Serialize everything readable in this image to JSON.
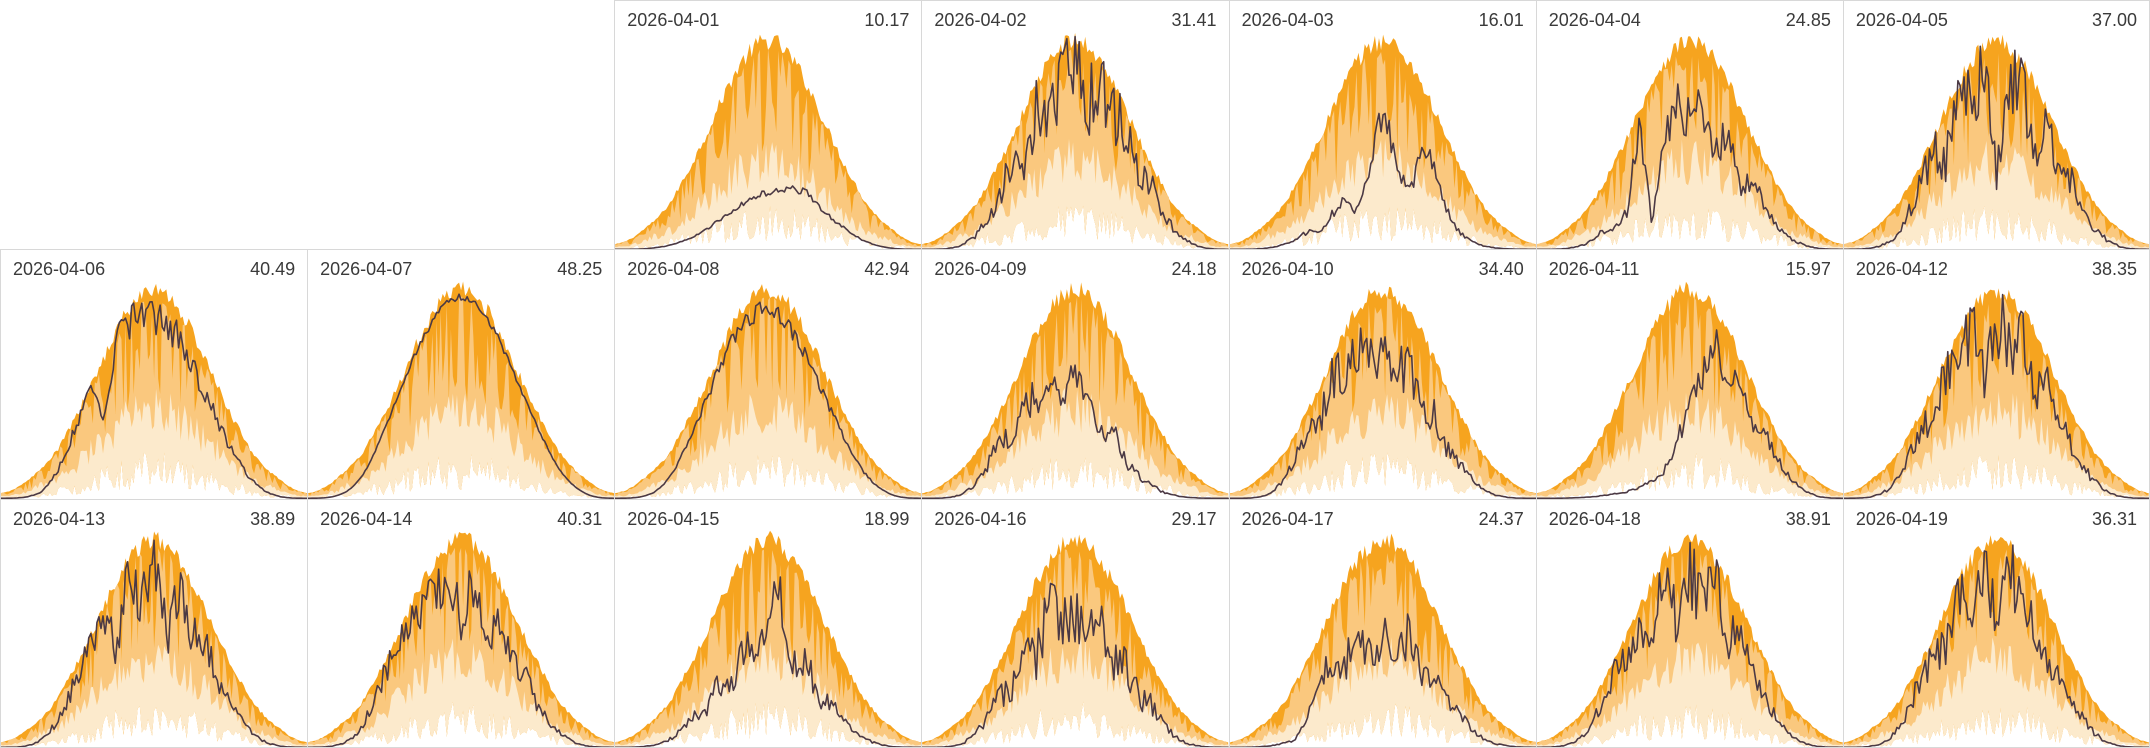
{
  "colors": {
    "envelope_bright": "#F6A41F",
    "envelope_mid": "#FAC87E",
    "envelope_pale": "#FCEACC",
    "actual_line": "#4B3944",
    "cell_border": "#D8D8D8",
    "label_text": "#3A3A3A",
    "background": "#FFFFFF"
  },
  "chart_data": {
    "type": "area",
    "layout": {
      "rows": 3,
      "cols": 7,
      "leading_empty_cells": 2
    },
    "axes_labels_visible": false,
    "envelope_fractions": {
      "note": "shared expected-production envelope, fraction of cell height across the day",
      "max": [
        0.02,
        0.03,
        0.05,
        0.08,
        0.11,
        0.15,
        0.2,
        0.27,
        0.34,
        0.42,
        0.5,
        0.59,
        0.67,
        0.74,
        0.79,
        0.83,
        0.84,
        0.83,
        0.79,
        0.74,
        0.67,
        0.59,
        0.5,
        0.42,
        0.34,
        0.27,
        0.2,
        0.15,
        0.11,
        0.08,
        0.05,
        0.03,
        0.02
      ],
      "p75": [
        0.02,
        0.03,
        0.04,
        0.07,
        0.1,
        0.13,
        0.18,
        0.24,
        0.3,
        0.37,
        0.44,
        0.52,
        0.59,
        0.65,
        0.7,
        0.73,
        0.74,
        0.73,
        0.7,
        0.65,
        0.59,
        0.52,
        0.44,
        0.37,
        0.3,
        0.24,
        0.18,
        0.13,
        0.1,
        0.07,
        0.04,
        0.03,
        0.02
      ],
      "p25": [
        0.01,
        0.01,
        0.02,
        0.03,
        0.05,
        0.06,
        0.08,
        0.11,
        0.14,
        0.18,
        0.21,
        0.25,
        0.28,
        0.31,
        0.33,
        0.35,
        0.35,
        0.35,
        0.33,
        0.31,
        0.28,
        0.25,
        0.21,
        0.18,
        0.14,
        0.11,
        0.08,
        0.06,
        0.05,
        0.03,
        0.02,
        0.01,
        0.01
      ],
      "min": [
        0.0,
        0.0,
        0.01,
        0.01,
        0.01,
        0.02,
        0.03,
        0.04,
        0.04,
        0.05,
        0.07,
        0.08,
        0.09,
        0.1,
        0.1,
        0.11,
        0.11,
        0.11,
        0.1,
        0.1,
        0.09,
        0.08,
        0.07,
        0.05,
        0.04,
        0.04,
        0.03,
        0.02,
        0.01,
        0.01,
        0.01,
        0.0,
        0.0
      ]
    },
    "days": [
      {
        "date": "2026-04-01",
        "value": 10.17,
        "value_label": "10.17",
        "variability": 0.06,
        "profile": [
          0,
          0,
          0.02,
          0.05,
          0.08,
          0.11,
          0.14,
          0.17,
          0.2,
          0.22,
          0.24,
          0.26,
          0.27,
          0.29,
          0.32,
          0.34,
          0.31,
          0.28,
          0.25,
          0.2,
          0.15,
          0.09,
          0.04,
          0.01,
          0
        ]
      },
      {
        "date": "2026-04-02",
        "value": 31.41,
        "value_label": "31.41",
        "variability": 0.24,
        "profile": [
          0,
          0,
          0.04,
          0.12,
          0.28,
          0.45,
          0.6,
          0.8,
          0.55,
          0.92,
          0.65,
          0.88,
          0.95,
          0.72,
          0.93,
          0.8,
          0.88,
          0.68,
          0.75,
          0.55,
          0.4,
          0.25,
          0.1,
          0.03,
          0
        ]
      },
      {
        "date": "2026-04-03",
        "value": 16.01,
        "value_label": "16.01",
        "variability": 0.15,
        "profile": [
          0,
          0,
          0.02,
          0.05,
          0.1,
          0.15,
          0.2,
          0.15,
          0.25,
          0.3,
          0.2,
          0.45,
          0.7,
          0.4,
          0.3,
          0.55,
          0.6,
          0.35,
          0.2,
          0.12,
          0.08,
          0.04,
          0.02,
          0.01,
          0
        ]
      },
      {
        "date": "2026-04-04",
        "value": 24.85,
        "value_label": "24.85",
        "variability": 0.18,
        "profile": [
          0,
          0,
          0.03,
          0.08,
          0.15,
          0.28,
          0.22,
          0.32,
          0.95,
          0.15,
          0.55,
          0.75,
          0.6,
          0.7,
          0.55,
          0.65,
          0.45,
          0.6,
          0.5,
          0.35,
          0.25,
          0.15,
          0.06,
          0.02,
          0
        ]
      },
      {
        "date": "2026-04-05",
        "value": 37.0,
        "value_label": "37.00",
        "variability": 0.24,
        "profile": [
          0,
          0.02,
          0.06,
          0.15,
          0.3,
          0.55,
          0.75,
          0.88,
          0.62,
          0.93,
          0.8,
          0.88,
          0.35,
          0.85,
          0.93,
          0.55,
          0.88,
          0.75,
          0.82,
          0.6,
          0.42,
          0.25,
          0.1,
          0.03,
          0
        ]
      },
      {
        "date": "2026-04-06",
        "value": 40.49,
        "value_label": "40.49",
        "variability": 0.1,
        "profile": [
          0,
          0.02,
          0.08,
          0.2,
          0.45,
          0.72,
          0.92,
          0.95,
          0.55,
          0.95,
          0.93,
          0.9,
          0.88,
          0.84,
          0.86,
          0.8,
          0.76,
          0.7,
          0.6,
          0.48,
          0.34,
          0.2,
          0.08,
          0.02,
          0
        ]
      },
      {
        "date": "2026-04-07",
        "value": 48.25,
        "value_label": "48.25",
        "variability": 0.02,
        "profile": [
          0,
          0.03,
          0.1,
          0.24,
          0.45,
          0.66,
          0.82,
          0.91,
          0.95,
          0.96,
          0.97,
          0.97,
          0.97,
          0.97,
          0.96,
          0.95,
          0.93,
          0.9,
          0.84,
          0.74,
          0.58,
          0.4,
          0.2,
          0.06,
          0
        ]
      },
      {
        "date": "2026-04-08",
        "value": 42.94,
        "value_label": "42.94",
        "variability": 0.05,
        "profile": [
          0,
          0.02,
          0.08,
          0.2,
          0.4,
          0.6,
          0.76,
          0.86,
          0.9,
          0.92,
          0.92,
          0.91,
          0.9,
          0.89,
          0.88,
          0.86,
          0.83,
          0.78,
          0.7,
          0.6,
          0.46,
          0.3,
          0.14,
          0.04,
          0
        ]
      },
      {
        "date": "2026-04-09",
        "value": 24.18,
        "value_label": "24.18",
        "variability": 0.2,
        "profile": [
          0,
          0,
          0.04,
          0.12,
          0.3,
          0.5,
          0.65,
          0.55,
          0.7,
          0.6,
          0.65,
          0.5,
          0.55,
          0.45,
          0.35,
          0.4,
          0.25,
          0.2,
          0.15,
          0.1,
          0.06,
          0.03,
          0.01,
          0,
          0
        ]
      },
      {
        "date": "2026-04-10",
        "value": 34.4,
        "value_label": "34.40",
        "variability": 0.2,
        "profile": [
          0,
          0,
          0.05,
          0.15,
          0.35,
          0.6,
          0.8,
          0.7,
          0.85,
          0.75,
          0.8,
          0.65,
          0.75,
          0.6,
          0.7,
          0.55,
          0.6,
          0.45,
          0.4,
          0.3,
          0.2,
          0.1,
          0.04,
          0.01,
          0
        ]
      },
      {
        "date": "2026-04-11",
        "value": 15.97,
        "value_label": "15.97",
        "variability": 0.14,
        "profile": [
          0,
          0,
          0.01,
          0.02,
          0.03,
          0.04,
          0.05,
          0.06,
          0.08,
          0.1,
          0.15,
          0.28,
          0.45,
          0.6,
          0.85,
          0.7,
          0.8,
          0.65,
          0.72,
          0.6,
          0.45,
          0.28,
          0.12,
          0.04,
          0
        ]
      },
      {
        "date": "2026-04-12",
        "value": 38.35,
        "value_label": "38.35",
        "variability": 0.22,
        "profile": [
          0,
          0.02,
          0.07,
          0.18,
          0.4,
          0.65,
          0.85,
          0.7,
          0.9,
          0.8,
          0.93,
          0.6,
          0.88,
          0.75,
          0.9,
          0.65,
          0.8,
          0.7,
          0.6,
          0.48,
          0.34,
          0.18,
          0.07,
          0.02,
          0
        ]
      },
      {
        "date": "2026-04-13",
        "value": 38.89,
        "value_label": "38.89",
        "variability": 0.2,
        "profile": [
          0,
          0.02,
          0.08,
          0.22,
          0.45,
          0.7,
          0.9,
          0.93,
          0.88,
          0.6,
          0.9,
          0.75,
          0.93,
          0.55,
          0.85,
          0.7,
          0.8,
          0.62,
          0.52,
          0.4,
          0.28,
          0.15,
          0.06,
          0.02,
          0
        ]
      },
      {
        "date": "2026-04-14",
        "value": 40.31,
        "value_label": "40.31",
        "variability": 0.18,
        "profile": [
          0,
          0.02,
          0.08,
          0.2,
          0.42,
          0.68,
          0.88,
          0.92,
          0.9,
          0.85,
          0.8,
          0.9,
          0.6,
          0.8,
          0.52,
          0.75,
          0.62,
          0.7,
          0.5,
          0.4,
          0.3,
          0.15,
          0.06,
          0.02,
          0
        ]
      },
      {
        "date": "2026-04-15",
        "value": 18.99,
        "value_label": "18.99",
        "variability": 0.2,
        "profile": [
          0,
          0,
          0.03,
          0.08,
          0.15,
          0.25,
          0.35,
          0.3,
          0.45,
          0.35,
          0.55,
          0.42,
          0.6,
          0.75,
          0.45,
          0.55,
          0.35,
          0.4,
          0.3,
          0.24,
          0.15,
          0.08,
          0.03,
          0.01,
          0
        ]
      },
      {
        "date": "2026-04-16",
        "value": 29.17,
        "value_label": "29.17",
        "variability": 0.28,
        "profile": [
          0,
          0,
          0.04,
          0.12,
          0.28,
          0.45,
          0.6,
          0.5,
          0.7,
          0.55,
          0.75,
          0.6,
          0.7,
          0.55,
          0.65,
          0.5,
          0.6,
          0.45,
          0.5,
          0.35,
          0.24,
          0.12,
          0.05,
          0.01,
          0
        ]
      },
      {
        "date": "2026-04-17",
        "value": 24.37,
        "value_label": "24.37",
        "variability": 0.22,
        "profile": [
          0,
          0,
          0.02,
          0.05,
          0.08,
          0.12,
          0.35,
          0.55,
          0.65,
          0.5,
          0.6,
          0.45,
          0.55,
          0.5,
          0.6,
          0.45,
          0.55,
          0.4,
          0.45,
          0.3,
          0.2,
          0.12,
          0.06,
          0.02,
          0
        ]
      },
      {
        "date": "2026-04-18",
        "value": 38.91,
        "value_label": "38.91",
        "variability": 0.2,
        "profile": [
          0,
          0.02,
          0.08,
          0.2,
          0.45,
          0.7,
          0.9,
          0.85,
          0.9,
          0.7,
          0.9,
          0.6,
          0.85,
          0.7,
          0.9,
          0.65,
          0.8,
          0.62,
          0.54,
          0.4,
          0.28,
          0.14,
          0.06,
          0.02,
          0
        ]
      },
      {
        "date": "2026-04-19",
        "value": 36.31,
        "value_label": "36.31",
        "variability": 0.22,
        "profile": [
          0,
          0,
          0.05,
          0.15,
          0.35,
          0.6,
          0.8,
          0.85,
          0.7,
          0.9,
          0.75,
          0.85,
          0.65,
          0.9,
          0.7,
          0.8,
          0.62,
          0.7,
          0.5,
          0.4,
          0.27,
          0.13,
          0.05,
          0.01,
          0
        ]
      }
    ]
  }
}
